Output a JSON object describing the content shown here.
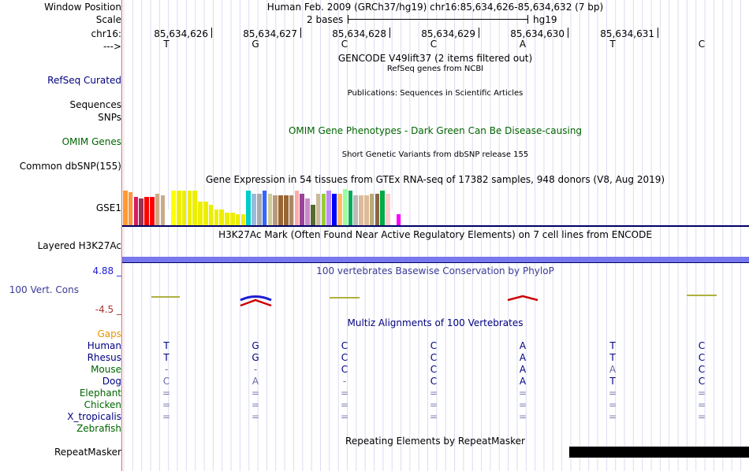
{
  "header": {
    "window_position_label": "Window Position",
    "window_position_value": "Human Feb. 2009 (GRCh37/hg19)   chr16:85,634,626-85,634,632 (7 bp)",
    "scale_label": "Scale",
    "scale_value": "2 bases",
    "scale_assembly": "hg19",
    "chrom_label": "chr16:",
    "strand_label": "--->",
    "positions": [
      "85,634,626",
      "85,634,627",
      "85,634,628",
      "85,634,629",
      "85,634,630",
      "85,634,631"
    ],
    "sequence": [
      "T",
      "G",
      "C",
      "C",
      "A",
      "T",
      "C"
    ]
  },
  "tracks": {
    "gencode_title": "GENCODE V49lift37 (2 items filtered out)",
    "refseq_label": "RefSeq Curated",
    "refseq_title": "RefSeq genes from NCBI",
    "sequences_label": "Sequences",
    "sequences_title": "Publications: Sequences in Scientific Articles",
    "snps_label": "SNPs",
    "omim_label": "OMIM Genes",
    "omim_title": "OMIM Gene Phenotypes - Dark Green Can Be Disease-causing",
    "dbsnp_label": "Common dbSNP(155)",
    "dbsnp_title": "Short Genetic Variants from dbSNP release 155",
    "gtex_title": "Gene Expression in 54 tissues from GTEx RNA-seq of 17382 samples, 948 donors (V8, Aug 2019)",
    "gse1_label": "GSE1",
    "h3k27ac_title": "H3K27Ac Mark (Often Found Near Active Regulatory Elements) on 7 cell lines from ENCODE",
    "h3k27ac_label": "Layered H3K27Ac",
    "phylop_max": "4.88 _",
    "phylop_min": "-4.5 _",
    "phylop_label": "100 Vert. Cons",
    "phylop_title": "100 vertebrates Basewise Conservation by PhyloP",
    "multiz_title": "Multiz Alignments of 100 Vertebrates",
    "gaps_label": "Gaps",
    "repeat_title": "Repeating Elements by RepeatMasker",
    "repeat_label": "RepeatMasker"
  },
  "colors": {
    "label_blue": "#000080",
    "omim_green": "#006400",
    "gaps_orange": "#e69500",
    "species_green": "#006400",
    "phylop_blue": "#1c1cd6",
    "phylop_red": "#cd0000",
    "ruler_red": "#d47070"
  },
  "alignment": {
    "species": [
      {
        "name": "Human",
        "bases": [
          "T",
          "G",
          "C",
          "C",
          "A",
          "T",
          "C"
        ]
      },
      {
        "name": "Rhesus",
        "bases": [
          "T",
          "G",
          "C",
          "C",
          "A",
          "T",
          "C"
        ]
      },
      {
        "name": "Mouse",
        "bases": [
          "-",
          "-",
          "C",
          "C",
          "A",
          "A",
          "C"
        ]
      },
      {
        "name": "Dog",
        "bases": [
          "C",
          "A",
          "-",
          "C",
          "A",
          "T",
          "C"
        ]
      },
      {
        "name": "Elephant",
        "bases": [
          "=",
          "=",
          "=",
          "=",
          "=",
          "=",
          "="
        ]
      },
      {
        "name": "Chicken",
        "bases": [
          "=",
          "=",
          "=",
          "=",
          "=",
          "=",
          "="
        ]
      },
      {
        "name": "X_tropicalis",
        "bases": [
          "=",
          "=",
          "=",
          "=",
          "=",
          "=",
          "="
        ]
      },
      {
        "name": "Zebrafish",
        "bases": []
      }
    ]
  },
  "gtex_tissue_colors": [
    "#ff9933",
    "#ff9933",
    "#d81b60",
    "#993355",
    "#ff0000",
    "#ff0000",
    "#ccaa88",
    "#ccaa88",
    "#ffffff",
    "#ffff00",
    "#eeee00",
    "#eeee00",
    "#eeee00",
    "#eeee00",
    "#eeee00",
    "#eeee00",
    "#eeee00",
    "#eeee00",
    "#eeee00",
    "#eeee00",
    "#eeee00",
    "#eeee00",
    "#eeee00",
    "#00cccc",
    "#99bbdd",
    "#aaaaaa",
    "#3366ff",
    "#cccc99",
    "#bb9977",
    "#996633",
    "#996633",
    "#aa8866",
    "#ffaaaa",
    "#994499",
    "#cc88cc",
    "#556b2f",
    "#ccbb99",
    "#99cc33",
    "#bb88ff",
    "#0000ff",
    "#ffbb66",
    "#99ff99",
    "#00aa55",
    "#bbbbbb",
    "#ddbb99",
    "#ddbb99",
    "#bbaa77",
    "#886644",
    "#00aa44",
    "#ffcccc",
    "#ffffff",
    "#ff00ff"
  ]
}
